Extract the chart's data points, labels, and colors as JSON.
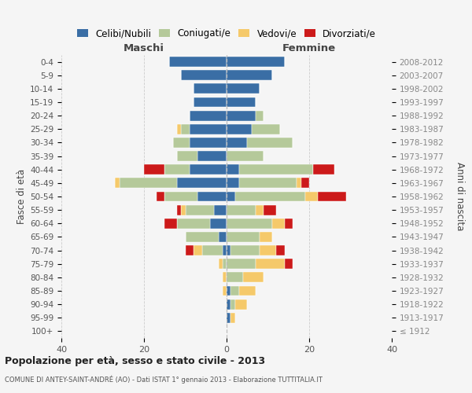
{
  "age_groups": [
    "100+",
    "95-99",
    "90-94",
    "85-89",
    "80-84",
    "75-79",
    "70-74",
    "65-69",
    "60-64",
    "55-59",
    "50-54",
    "45-49",
    "40-44",
    "35-39",
    "30-34",
    "25-29",
    "20-24",
    "15-19",
    "10-14",
    "5-9",
    "0-4"
  ],
  "birth_years": [
    "≤ 1912",
    "1913-1917",
    "1918-1922",
    "1923-1927",
    "1928-1932",
    "1933-1937",
    "1938-1942",
    "1943-1947",
    "1948-1952",
    "1953-1957",
    "1958-1962",
    "1963-1967",
    "1968-1972",
    "1973-1977",
    "1978-1982",
    "1983-1987",
    "1988-1992",
    "1993-1997",
    "1998-2002",
    "2003-2007",
    "2008-2012"
  ],
  "colors": {
    "celibi": "#3a6ea5",
    "coniugati": "#b5c99a",
    "vedovi": "#f5c96a",
    "divorziati": "#cc1a1a"
  },
  "males": {
    "celibi": [
      0,
      0,
      0,
      0,
      0,
      0,
      1,
      2,
      4,
      3,
      7,
      12,
      9,
      7,
      9,
      9,
      9,
      8,
      8,
      11,
      14
    ],
    "coniugati": [
      0,
      0,
      0,
      0,
      0,
      1,
      5,
      8,
      8,
      7,
      8,
      14,
      6,
      5,
      4,
      2,
      0,
      0,
      0,
      0,
      0
    ],
    "vedovi": [
      0,
      0,
      0,
      1,
      1,
      1,
      2,
      0,
      0,
      1,
      0,
      1,
      0,
      0,
      0,
      1,
      0,
      0,
      0,
      0,
      0
    ],
    "divorziati": [
      0,
      0,
      0,
      0,
      0,
      0,
      2,
      0,
      3,
      1,
      2,
      0,
      5,
      0,
      0,
      0,
      0,
      0,
      0,
      0,
      0
    ]
  },
  "females": {
    "celibi": [
      0,
      1,
      1,
      1,
      0,
      0,
      1,
      0,
      0,
      0,
      2,
      3,
      3,
      0,
      5,
      6,
      7,
      7,
      8,
      11,
      14
    ],
    "coniugati": [
      0,
      0,
      1,
      2,
      4,
      7,
      7,
      8,
      11,
      7,
      17,
      14,
      18,
      9,
      11,
      7,
      2,
      0,
      0,
      0,
      0
    ],
    "vedovi": [
      0,
      1,
      3,
      4,
      5,
      7,
      4,
      3,
      3,
      2,
      3,
      1,
      0,
      0,
      0,
      0,
      0,
      0,
      0,
      0,
      0
    ],
    "divorziati": [
      0,
      0,
      0,
      0,
      0,
      2,
      2,
      0,
      2,
      3,
      7,
      2,
      5,
      0,
      0,
      0,
      0,
      0,
      0,
      0,
      0
    ]
  },
  "xlim": 40,
  "title_main": "Popolazione per età, sesso e stato civile - 2013",
  "title_sub": "COMUNE DI ANTEY-SAINT-ANDRÉ (AO) - Dati ISTAT 1° gennaio 2013 - Elaborazione TUTTITALIA.IT",
  "legend_labels": [
    "Celibi/Nubili",
    "Coniugati/e",
    "Vedovi/e",
    "Divorziati/e"
  ],
  "label_maschi": "Maschi",
  "label_femmine": "Femmine",
  "ylabel_left": "Fasce di età",
  "ylabel_right": "Anni di nascita",
  "background_color": "#f5f5f5"
}
